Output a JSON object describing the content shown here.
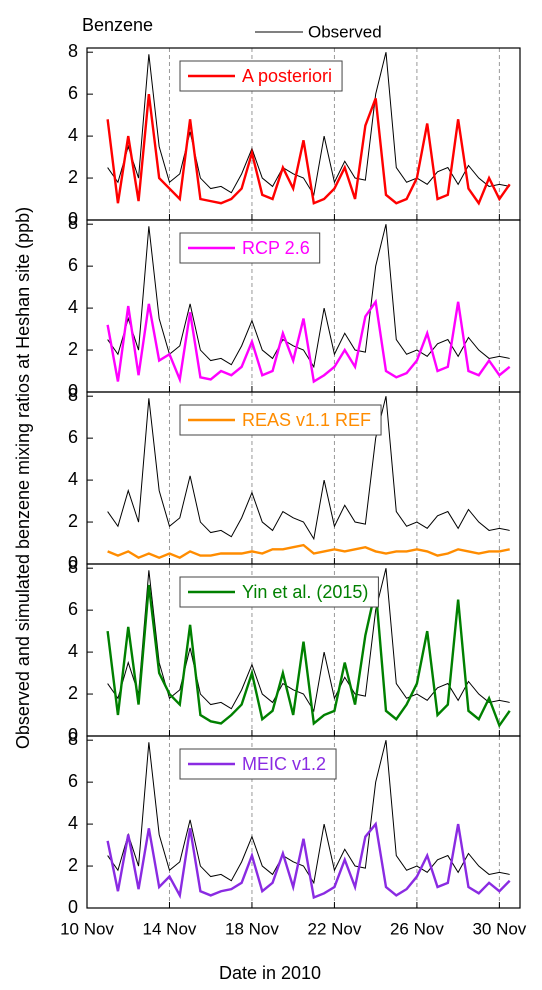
{
  "chart_data": {
    "type": "line",
    "title": "Benzene",
    "x_label": "Date in 2010",
    "y_label": "Observed and simulated benzene mixing ratios at Heshan site (ppb)",
    "x": [
      11,
      11.5,
      12,
      12.5,
      13,
      13.5,
      14,
      14.5,
      15,
      15.5,
      16,
      16.5,
      17,
      17.5,
      18,
      18.5,
      19,
      19.5,
      20,
      20.5,
      21,
      21.5,
      22,
      22.5,
      23,
      23.5,
      24,
      24.5,
      25,
      25.5,
      26,
      26.5,
      27,
      27.5,
      28,
      28.5,
      29,
      29.5,
      30,
      30.5
    ],
    "xlim": [
      10,
      31
    ],
    "xticks": [
      {
        "value": 10,
        "label": "10 Nov"
      },
      {
        "value": 14,
        "label": "14 Nov"
      },
      {
        "value": 18,
        "label": "18 Nov"
      },
      {
        "value": 22,
        "label": "22 Nov"
      },
      {
        "value": 26,
        "label": "26 Nov"
      },
      {
        "value": 30,
        "label": "30 Nov"
      }
    ],
    "ylim": [
      0,
      8.2
    ],
    "yticks": [
      0,
      2,
      4,
      6,
      8
    ],
    "grid": true,
    "series": [
      {
        "name": "Observed",
        "color": "#000000",
        "values": [
          2.5,
          1.8,
          3.5,
          2.0,
          7.9,
          3.5,
          1.8,
          2.2,
          4.2,
          2.0,
          1.5,
          1.6,
          1.3,
          2.2,
          3.4,
          2.0,
          1.6,
          2.5,
          2.2,
          2.0,
          1.2,
          4.0,
          1.8,
          2.8,
          2.0,
          1.9,
          6.0,
          8.0,
          2.5,
          1.8,
          2.0,
          1.7,
          2.3,
          2.5,
          1.7,
          2.6,
          2.0,
          1.6,
          1.7,
          1.6
        ]
      },
      {
        "name": "A posteriori",
        "color": "#ff0000",
        "values": [
          4.8,
          0.8,
          4.0,
          0.9,
          6.0,
          2.0,
          1.5,
          1.0,
          4.8,
          1.0,
          0.9,
          0.8,
          1.0,
          1.5,
          3.2,
          1.2,
          1.0,
          2.5,
          1.5,
          3.8,
          0.8,
          1.0,
          1.5,
          2.5,
          1.0,
          4.5,
          5.8,
          1.2,
          0.8,
          1.0,
          2.0,
          4.6,
          1.0,
          1.2,
          4.8,
          1.5,
          0.8,
          2.0,
          1.0,
          1.7
        ]
      },
      {
        "name": "RCP 2.6",
        "color": "#ff00ff",
        "values": [
          3.2,
          0.5,
          4.1,
          0.8,
          4.2,
          1.5,
          1.8,
          0.6,
          3.8,
          0.7,
          0.6,
          1.0,
          0.8,
          1.2,
          2.4,
          0.8,
          1.0,
          2.8,
          1.5,
          3.5,
          0.5,
          0.8,
          1.2,
          2.0,
          1.2,
          3.6,
          4.3,
          1.0,
          0.7,
          0.9,
          1.5,
          2.8,
          1.0,
          1.2,
          4.3,
          1.0,
          0.8,
          1.5,
          0.8,
          1.2
        ]
      },
      {
        "name": "REAS v1.1 REF",
        "color": "#ff8c00",
        "values": [
          0.6,
          0.4,
          0.6,
          0.3,
          0.5,
          0.3,
          0.5,
          0.3,
          0.6,
          0.4,
          0.4,
          0.5,
          0.5,
          0.5,
          0.6,
          0.5,
          0.7,
          0.7,
          0.8,
          0.9,
          0.5,
          0.6,
          0.7,
          0.6,
          0.7,
          0.8,
          0.6,
          0.5,
          0.6,
          0.6,
          0.7,
          0.6,
          0.4,
          0.5,
          0.7,
          0.6,
          0.5,
          0.6,
          0.6,
          0.7
        ]
      },
      {
        "name": "Yin et al. (2015)",
        "color": "#008000",
        "values": [
          5.0,
          1.0,
          5.2,
          1.5,
          7.2,
          3.0,
          2.0,
          1.5,
          5.3,
          1.0,
          0.7,
          0.6,
          1.0,
          1.5,
          3.0,
          0.8,
          1.2,
          3.0,
          1.0,
          4.5,
          0.6,
          1.0,
          1.2,
          3.5,
          1.5,
          4.8,
          7.0,
          1.2,
          0.8,
          1.5,
          2.5,
          5.0,
          1.0,
          1.5,
          6.5,
          1.2,
          0.8,
          1.8,
          0.5,
          1.2
        ]
      },
      {
        "name": "MEIC v1.2",
        "color": "#8a2be2",
        "values": [
          3.2,
          0.8,
          3.5,
          0.9,
          3.8,
          1.0,
          1.5,
          0.6,
          3.8,
          0.8,
          0.6,
          0.8,
          0.9,
          1.2,
          2.5,
          0.8,
          1.2,
          2.6,
          1.0,
          3.3,
          0.5,
          0.7,
          1.0,
          2.3,
          1.0,
          3.4,
          4.0,
          1.0,
          0.6,
          0.9,
          1.5,
          2.5,
          1.0,
          1.2,
          4.0,
          1.0,
          0.7,
          1.2,
          0.8,
          1.3
        ]
      }
    ]
  }
}
